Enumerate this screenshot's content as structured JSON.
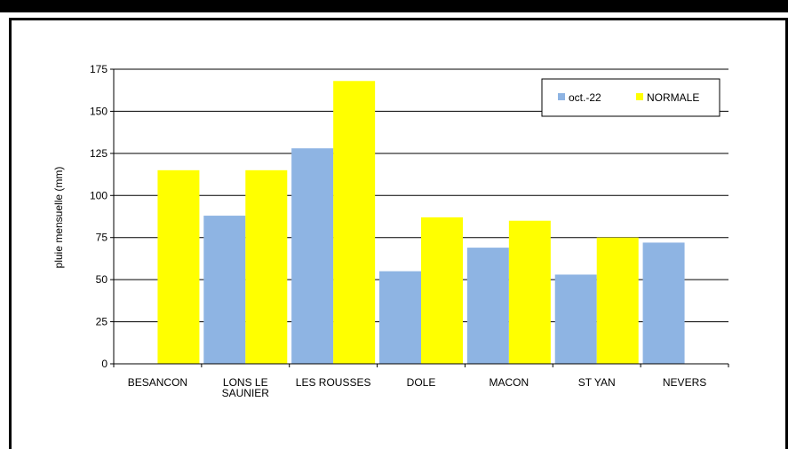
{
  "chart_data": {
    "type": "bar",
    "categories": [
      [
        "BESANCON"
      ],
      [
        "LONS LE",
        "SAUNIER"
      ],
      [
        "LES ROUSSES"
      ],
      [
        "DOLE"
      ],
      [
        "MACON"
      ],
      [
        "ST YAN"
      ],
      [
        "NEVERS"
      ]
    ],
    "series": [
      {
        "name": "oct.-22",
        "color": "#8EB4E3",
        "values": [
          null,
          88,
          128,
          55,
          69,
          53,
          72
        ]
      },
      {
        "name": "NORMALE",
        "color": "#FFFF00",
        "values": [
          115,
          115,
          168,
          87,
          85,
          75,
          null
        ]
      }
    ],
    "ylabel": "pluie mensuelle (mm)",
    "xlabel": "",
    "title": "",
    "ylim": [
      0,
      175
    ],
    "yticks": [
      0,
      25,
      50,
      75,
      100,
      125,
      150,
      175
    ],
    "grid": true,
    "legend_position": "top-right"
  }
}
